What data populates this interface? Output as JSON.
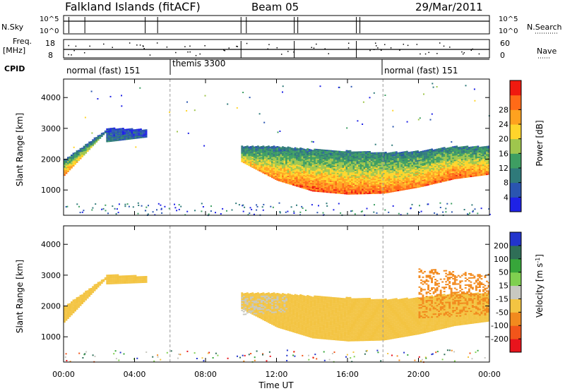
{
  "header": {
    "station": "Falkland Islands (fitACF)",
    "beam": "Beam 05",
    "date": "29/Mar/2011"
  },
  "strip_panels": {
    "nsky_label": "N.Sky",
    "nsky_ticks": [
      "10^5",
      "10^0"
    ],
    "nsearch_label": "N.Search",
    "nsearch_ticks": [
      "10^5",
      "10^0"
    ],
    "freq_label_1": "Freq.",
    "freq_label_2": "[MHz]",
    "freq_ticks": [
      "18",
      "8"
    ],
    "nave_label": "Nave",
    "nave_ticks": [
      "60",
      "0"
    ],
    "cpid_label": "CPID",
    "cpid_segments": [
      {
        "label": "normal (fast) 151",
        "start_hour": 0,
        "end_hour": 6
      },
      {
        "label": "themis 3300",
        "start_hour": 6,
        "end_hour": 18
      },
      {
        "label": "normal (fast) 151",
        "start_hour": 18,
        "end_hour": 24
      }
    ]
  },
  "axes": {
    "xlabel": "Time UT",
    "x_ticks": [
      "00:00",
      "04:00",
      "08:00",
      "12:00",
      "16:00",
      "20:00",
      "00:00"
    ],
    "ylabel": "Slant Range [km]",
    "y_ticks": [
      "1000",
      "2000",
      "3000",
      "4000"
    ]
  },
  "colorbars": {
    "power": {
      "label": "Power [dB]",
      "ticks": [
        "4",
        "8",
        "12",
        "16",
        "20",
        "24",
        "28"
      ],
      "colors": [
        "#1e22e6",
        "#2a55b0",
        "#2f7a7a",
        "#3e9e62",
        "#9fc64d",
        "#ffd52b",
        "#ffa21f",
        "#ff6a17",
        "#f01a0f"
      ]
    },
    "velocity": {
      "label": "Velocity [m s",
      "label_sup": "-1",
      "label_end": "]",
      "ticks": [
        "200",
        "100",
        "50",
        "15",
        "-15",
        "-50",
        "-100",
        "-200"
      ],
      "colors": [
        "#2234cc",
        "#2f6e57",
        "#37a63a",
        "#80d050",
        "#c8c8c0",
        "#f3c442",
        "#f28a1e",
        "#f2551a",
        "#e8141c"
      ]
    }
  },
  "chart_data": [
    {
      "type": "heatmap",
      "panel": "power",
      "xlabel": "Time UT",
      "ylabel": "Slant Range [km]",
      "xlim": [
        0,
        24
      ],
      "ylim": [
        180,
        4600
      ],
      "colorbar_label": "Power [dB]",
      "colorbar_range": [
        0,
        30
      ],
      "colorscale": "#1e22e6 (low) to #f01a0f (high)",
      "backscatter_regions": [
        {
          "start_hour": 0.0,
          "end_hour": 2.4,
          "lower_edge_km": [
            1460,
            2900
          ],
          "upper_edge_km": [
            1960,
            2950
          ],
          "core_power_db": [
            24,
            10
          ]
        },
        {
          "start_hour": 2.4,
          "end_hour": 4.6,
          "lower_edge_km": [
            2550,
            2700
          ],
          "upper_edge_km": [
            3000,
            2950
          ],
          "core_power_db": [
            8,
            6
          ]
        },
        {
          "start_hour": 10.0,
          "end_hour": 24.0,
          "lower_edge_km": [
            1900,
            1300,
            950,
            850,
            880,
            1080,
            1350,
            1500
          ],
          "upper_edge_km": [
            2400,
            2400,
            2300,
            2250,
            2200,
            2250,
            2400,
            2400
          ],
          "core_power_db": [
            20,
            24,
            26,
            26,
            25,
            24,
            26,
            24
          ]
        }
      ]
    },
    {
      "type": "heatmap",
      "panel": "velocity",
      "xlabel": "Time UT",
      "ylabel": "Slant Range [km]",
      "xlim": [
        0,
        24
      ],
      "ylim": [
        180,
        4600
      ],
      "colorbar_label": "Velocity [m s-1]",
      "colorbar_range": [
        -250,
        250
      ],
      "colorscale": "#e8141c (-) to #2234cc (+)",
      "backscatter_regions": [
        {
          "start_hour": 0.0,
          "end_hour": 2.4,
          "lower_edge_km": [
            1460,
            2900
          ],
          "upper_edge_km": [
            1960,
            2950
          ],
          "dominant_velocity_ms": 0
        },
        {
          "start_hour": 2.4,
          "end_hour": 4.6,
          "lower_edge_km": [
            2700,
            2750
          ],
          "upper_edge_km": [
            3000,
            2950
          ],
          "dominant_velocity_ms": 0
        },
        {
          "start_hour": 10.0,
          "end_hour": 24.0,
          "lower_edge_km": [
            1900,
            1300,
            950,
            850,
            880,
            1080,
            1350,
            1500
          ],
          "upper_edge_km": [
            2400,
            2400,
            2300,
            2250,
            2200,
            2250,
            2400,
            2400
          ],
          "dominant_velocity_ms": 0
        },
        {
          "start_hour": 10.0,
          "end_hour": 12.5,
          "lower_edge_km": [
            1700,
            1800
          ],
          "upper_edge_km": [
            2300,
            2300
          ],
          "dominant_velocity_ms": 30
        },
        {
          "start_hour": 20.0,
          "end_hour": 24.0,
          "lower_edge_km": [
            1600,
            1700
          ],
          "upper_edge_km": [
            3200,
            3000
          ],
          "dominant_velocity_ms": -40
        }
      ]
    }
  ]
}
